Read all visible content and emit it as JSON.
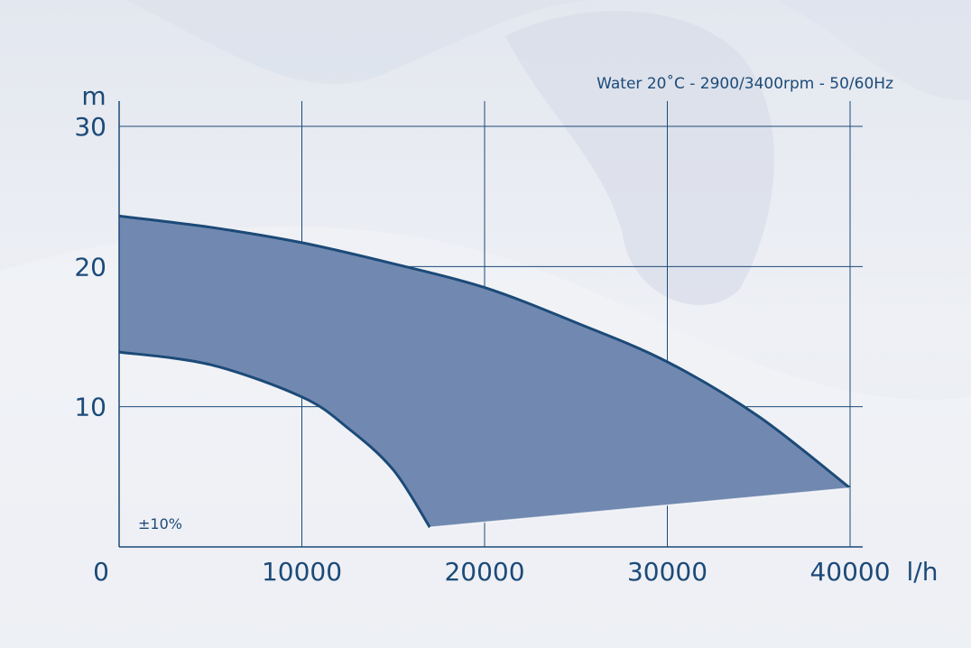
{
  "chart_data": {
    "type": "area",
    "title": "Water 20˚C - 2900/3400rpm - 50/60Hz",
    "xlabel": "l/h",
    "ylabel": "m",
    "xlim": [
      0,
      40000
    ],
    "ylim": [
      0,
      30
    ],
    "x_ticks": [
      0,
      10000,
      20000,
      30000,
      40000
    ],
    "y_ticks": [
      10,
      20,
      30
    ],
    "grid": true,
    "annotation": "±10%",
    "colors": {
      "fill": "#7189b0",
      "line": "#1c4a78",
      "text": "#1c4a78"
    },
    "series": [
      {
        "x": [
          0,
          5000,
          10000,
          15000,
          20000,
          25000,
          30000,
          35000,
          40000
        ],
        "values": [
          23.6,
          22.8,
          21.7,
          20.2,
          18.5,
          16.0,
          13.2,
          9.3,
          4.2
        ]
      },
      {
        "x": [
          0,
          5000,
          10000,
          12500,
          15000,
          17000
        ],
        "values": [
          13.9,
          13.0,
          10.7,
          8.5,
          5.5,
          1.4
        ]
      },
      {
        "x": [
          17000,
          40000
        ],
        "values": [
          1.4,
          4.2
        ]
      }
    ]
  }
}
